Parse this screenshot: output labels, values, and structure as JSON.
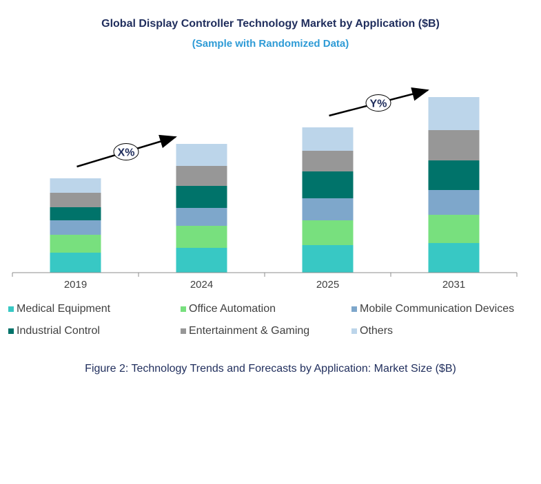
{
  "chart_data": {
    "type": "bar",
    "stacked": true,
    "title": "Global Display Controller Technology Market by Application ($B)",
    "subtitle": "(Sample with Randomized Data)",
    "categories": [
      "2019",
      "2024",
      "2025",
      "2031"
    ],
    "series": [
      {
        "name": "Medical Equipment",
        "color": "#38c8c4",
        "values": [
          29,
          36,
          40,
          43
        ]
      },
      {
        "name": "Office Automation",
        "color": "#78e07e",
        "values": [
          26,
          32,
          36,
          41
        ]
      },
      {
        "name": "Mobile Communication Devices",
        "color": "#7ea7cb",
        "values": [
          21,
          26,
          32,
          36
        ]
      },
      {
        "name": "Industrial Control",
        "color": "#00736a",
        "values": [
          19,
          32,
          39,
          43
        ]
      },
      {
        "name": "Entertainment & Gaming",
        "color": "#979797",
        "values": [
          21,
          29,
          30,
          44
        ]
      },
      {
        "name": "Others",
        "color": "#bcd5ea",
        "values": [
          21,
          32,
          34,
          48
        ]
      }
    ],
    "annotations": [
      {
        "label": "X%",
        "from": "2019",
        "to": "2024"
      },
      {
        "label": "Y%",
        "from": "2025",
        "to": "2031"
      }
    ],
    "grid": false,
    "legend": "bottom"
  },
  "caption": "Figure 2: Technology  Trends  and Forecasts by Application: Market Size ($B)"
}
